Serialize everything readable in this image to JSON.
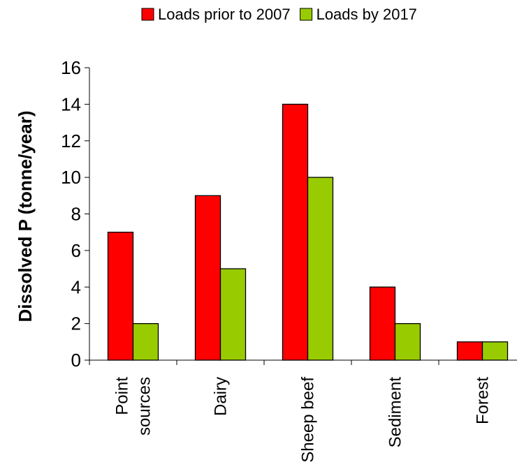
{
  "chart_data": {
    "type": "bar",
    "categories": [
      [
        "Point",
        "sources"
      ],
      [
        "Dairy"
      ],
      [
        "Sheep beef"
      ],
      [
        "Sediment"
      ],
      [
        "Forest"
      ]
    ],
    "series": [
      {
        "name": "Loads prior to 2007",
        "color": "#ff0000",
        "values": [
          7,
          9,
          14,
          4,
          1
        ]
      },
      {
        "name": "Loads by 2017",
        "color": "#99cc00",
        "values": [
          2,
          5,
          10,
          2,
          1
        ]
      }
    ],
    "xlabel": "",
    "ylabel": "Dissolved P  (tonne/year)",
    "ylim": [
      0,
      16
    ],
    "yticks": [
      0,
      2,
      4,
      6,
      8,
      10,
      12,
      14,
      16
    ],
    "grid": false,
    "legend_position": "top"
  }
}
